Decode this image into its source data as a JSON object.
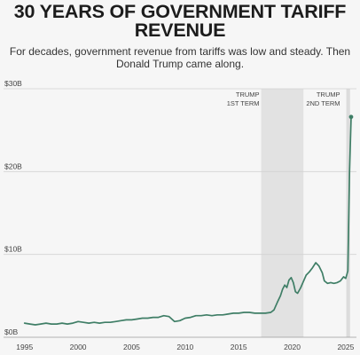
{
  "header": {
    "title_line1": "30 YEARS OF GOVERNMENT TARIFF",
    "title_line2": "REVENUE",
    "subtitle_line1": "For decades, government revenue from tariffs was low and steady. Then",
    "subtitle_line2": "Donald Trump came along."
  },
  "chart_data": {
    "type": "line",
    "title": "30 YEARS OF GOVERNMENT TARIFF REVENUE",
    "subtitle": "For decades, government revenue from tariffs was low and steady. Then Donald Trump came along.",
    "xlim": [
      1993.2,
      2026.0
    ],
    "ylim": [
      0,
      30
    ],
    "grid": true,
    "y_ticks": [
      {
        "value": 0,
        "label": "$0B"
      },
      {
        "value": 10,
        "label": "$10B"
      },
      {
        "value": 20,
        "label": "$20B"
      },
      {
        "value": 30,
        "label": "$30B"
      }
    ],
    "x_ticks": [
      {
        "value": 1995,
        "label": "1995"
      },
      {
        "value": 2000,
        "label": "2000"
      },
      {
        "value": 2005,
        "label": "2005"
      },
      {
        "value": 2010,
        "label": "2010"
      },
      {
        "value": 2015,
        "label": "2015"
      },
      {
        "value": 2020,
        "label": "2020"
      },
      {
        "value": 2025,
        "label": "2025"
      }
    ],
    "bands": [
      {
        "x0": 2017.1,
        "x1": 2021.05,
        "label_line1": "TRUMP",
        "label_line2": "1ST TERM"
      },
      {
        "x0": 2025.05,
        "x1": 2025.4,
        "label_line1": "TRUMP",
        "label_line2": "2ND TERM"
      }
    ],
    "color": "#3f7e66",
    "series": [
      {
        "x": [
          1995.0,
          1995.5,
          1996.0,
          1996.5,
          1997.0,
          1997.5,
          1998.0,
          1998.5,
          1999.0,
          1999.5,
          2000.0,
          2000.5,
          2001.0,
          2001.5,
          2002.0,
          2002.5,
          2003.0,
          2003.5,
          2004.0,
          2004.5,
          2005.0,
          2005.5,
          2006.0,
          2006.5,
          2007.0,
          2007.5,
          2008.0,
          2008.5,
          2009.0,
          2009.5,
          2010.0,
          2010.5,
          2011.0,
          2011.5,
          2012.0,
          2012.5,
          2013.0,
          2013.5,
          2014.0,
          2014.5,
          2015.0,
          2015.5,
          2016.0,
          2016.5,
          2017.0,
          2017.5,
          2018.0,
          2018.3,
          2018.6,
          2018.9,
          2019.1,
          2019.3,
          2019.5,
          2019.7,
          2019.9,
          2020.1,
          2020.3,
          2020.5,
          2020.8,
          2021.0,
          2021.3,
          2021.6,
          2021.9,
          2022.2,
          2022.5,
          2022.8,
          2023.0,
          2023.3,
          2023.6,
          2023.9,
          2024.2,
          2024.5,
          2024.8,
          2025.0,
          2025.2,
          2025.35,
          2025.5
        ],
        "y": [
          1.7,
          1.6,
          1.5,
          1.6,
          1.7,
          1.6,
          1.6,
          1.7,
          1.6,
          1.7,
          1.9,
          1.8,
          1.7,
          1.8,
          1.7,
          1.8,
          1.8,
          1.9,
          2.0,
          2.1,
          2.1,
          2.2,
          2.3,
          2.3,
          2.4,
          2.4,
          2.6,
          2.5,
          1.9,
          2.0,
          2.3,
          2.4,
          2.6,
          2.6,
          2.7,
          2.6,
          2.7,
          2.7,
          2.8,
          2.9,
          2.9,
          3.0,
          3.0,
          2.9,
          2.9,
          2.9,
          3.0,
          3.3,
          4.2,
          5.0,
          5.8,
          6.3,
          6.0,
          6.9,
          7.2,
          6.6,
          5.5,
          5.3,
          6.0,
          6.6,
          7.5,
          7.9,
          8.4,
          9.0,
          8.6,
          7.8,
          6.8,
          6.5,
          6.6,
          6.5,
          6.6,
          6.8,
          7.3,
          7.1,
          8.0,
          20.0,
          26.6
        ]
      }
    ]
  }
}
